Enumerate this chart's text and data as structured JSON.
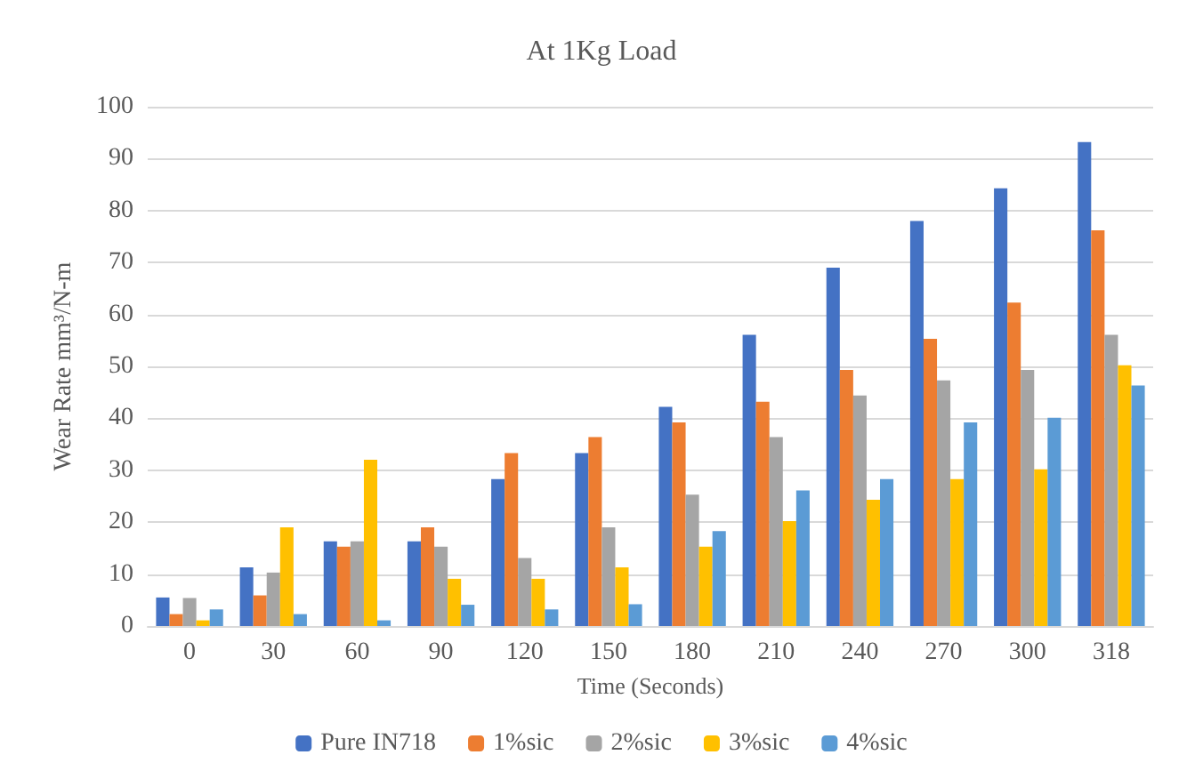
{
  "chart_data": {
    "type": "bar",
    "title": "At 1Kg Load",
    "xlabel": "Time (Seconds)",
    "ylabel": "Wear Rate mm³/N-m",
    "categories": [
      "0",
      "30",
      "60",
      "90",
      "120",
      "150",
      "180",
      "210",
      "240",
      "270",
      "300",
      "318"
    ],
    "series": [
      {
        "name": "Pure IN718",
        "color": "#4472c4",
        "values": [
          5.5,
          11.3,
          16.3,
          16.3,
          28.3,
          33.3,
          42.2,
          56.1,
          69,
          78,
          84.3,
          93.2
        ]
      },
      {
        "name": "1%sic",
        "color": "#ed7d31",
        "values": [
          2.3,
          5.9,
          15.3,
          19,
          33.3,
          36.4,
          39.2,
          43.2,
          49.3,
          55.3,
          62.3,
          76.2
        ]
      },
      {
        "name": "2%sic",
        "color": "#a5a5a5",
        "values": [
          5.4,
          10.3,
          16.3,
          15.3,
          13.1,
          19,
          25.3,
          36.4,
          44.4,
          47.3,
          49.3,
          56.1
        ]
      },
      {
        "name": "3%sic",
        "color": "#ffc000",
        "values": [
          1.1,
          19,
          32,
          9.1,
          9.1,
          11.3,
          15.3,
          20.2,
          24.3,
          28.3,
          30.2,
          50.2
        ]
      },
      {
        "name": "4%sic",
        "color": "#5b9bd5",
        "values": [
          3.2,
          2.3,
          1.1,
          4.1,
          3.2,
          4.2,
          18.3,
          26.1,
          28.3,
          39.2,
          40.1,
          46.3
        ]
      }
    ],
    "ylim": [
      0,
      100
    ],
    "yticks": [
      0,
      10,
      20,
      30,
      40,
      50,
      60,
      70,
      80,
      90,
      100
    ],
    "grid": "y",
    "legend": "bottom"
  }
}
